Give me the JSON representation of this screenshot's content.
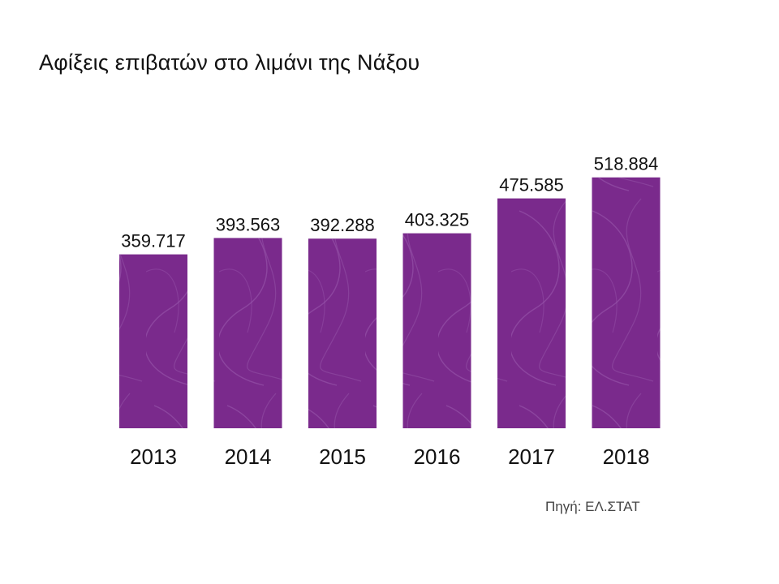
{
  "title": "Αφίξεις επιβατών στο λιμάνι της Νάξου",
  "source": "Πηγή: ΕΛ.ΣΤΑΤ",
  "colors": {
    "bar": "#7a2a8c",
    "bar_pattern": "#9a5aae"
  },
  "chart_data": {
    "type": "bar",
    "title": "Αφίξεις επιβατών στο λιμάνι της Νάξου",
    "categories": [
      "2013",
      "2014",
      "2015",
      "2016",
      "2017",
      "2018"
    ],
    "values": [
      359717,
      393563,
      392288,
      403325,
      475585,
      518884
    ],
    "data_labels": [
      "359.717",
      "393.563",
      "392.288",
      "403.325",
      "475.585",
      "518.884"
    ],
    "xlabel": "",
    "ylabel": "",
    "grid": false,
    "legend": "none"
  }
}
